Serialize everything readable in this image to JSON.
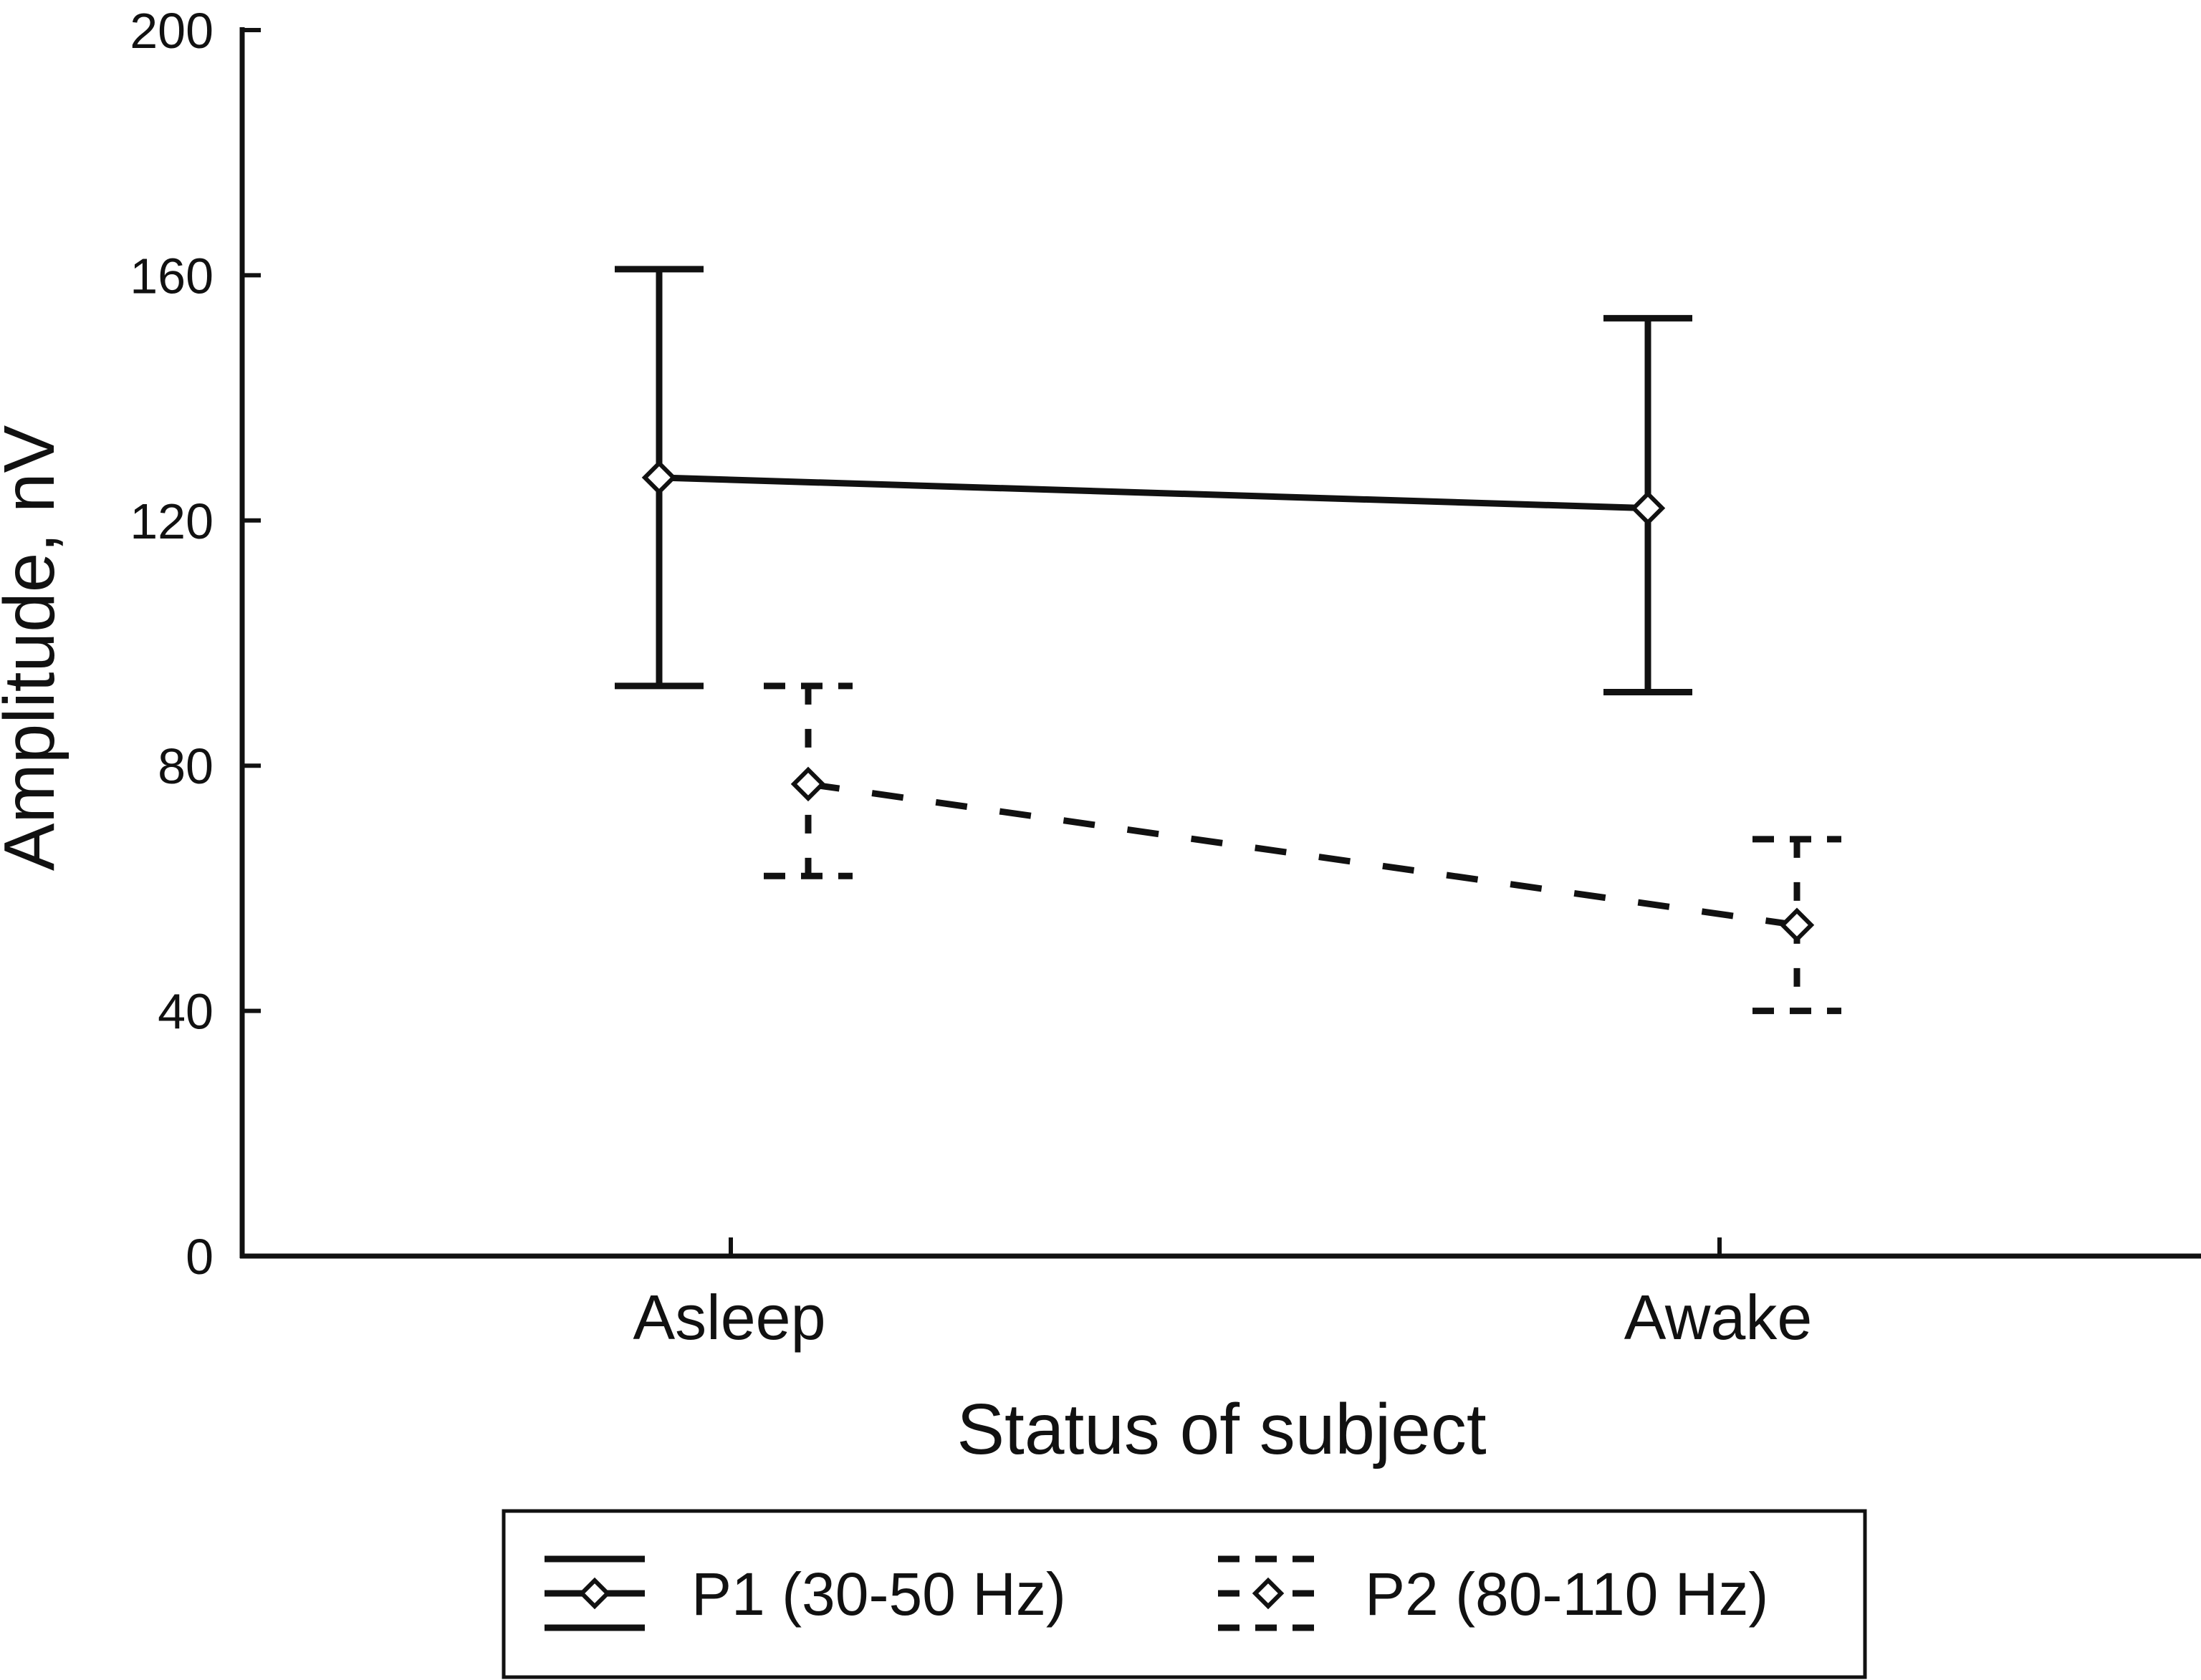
{
  "chart_data": {
    "type": "line",
    "categories": [
      "Asleep",
      "Awake"
    ],
    "xlabel": "Status of subject",
    "ylabel": "Amplitude, nV",
    "ylim": [
      0,
      200
    ],
    "yticks": [
      0,
      40,
      80,
      120,
      160,
      200
    ],
    "grid": false,
    "legend_position": "bottom",
    "series": [
      {
        "name": "P1 (30-50 Hz)",
        "line_style": "solid",
        "marker": "open-diamond",
        "values": [
          127,
          122
        ],
        "err_low": [
          93,
          92
        ],
        "err_high": [
          161,
          153
        ]
      },
      {
        "name": "P2 (80-110 Hz)",
        "line_style": "dashed",
        "marker": "open-diamond",
        "values": [
          77,
          54
        ],
        "err_low": [
          62,
          40
        ],
        "err_high": [
          93,
          68
        ]
      }
    ],
    "colors": {
      "ink": "#111111",
      "background": "#ffffff"
    }
  }
}
